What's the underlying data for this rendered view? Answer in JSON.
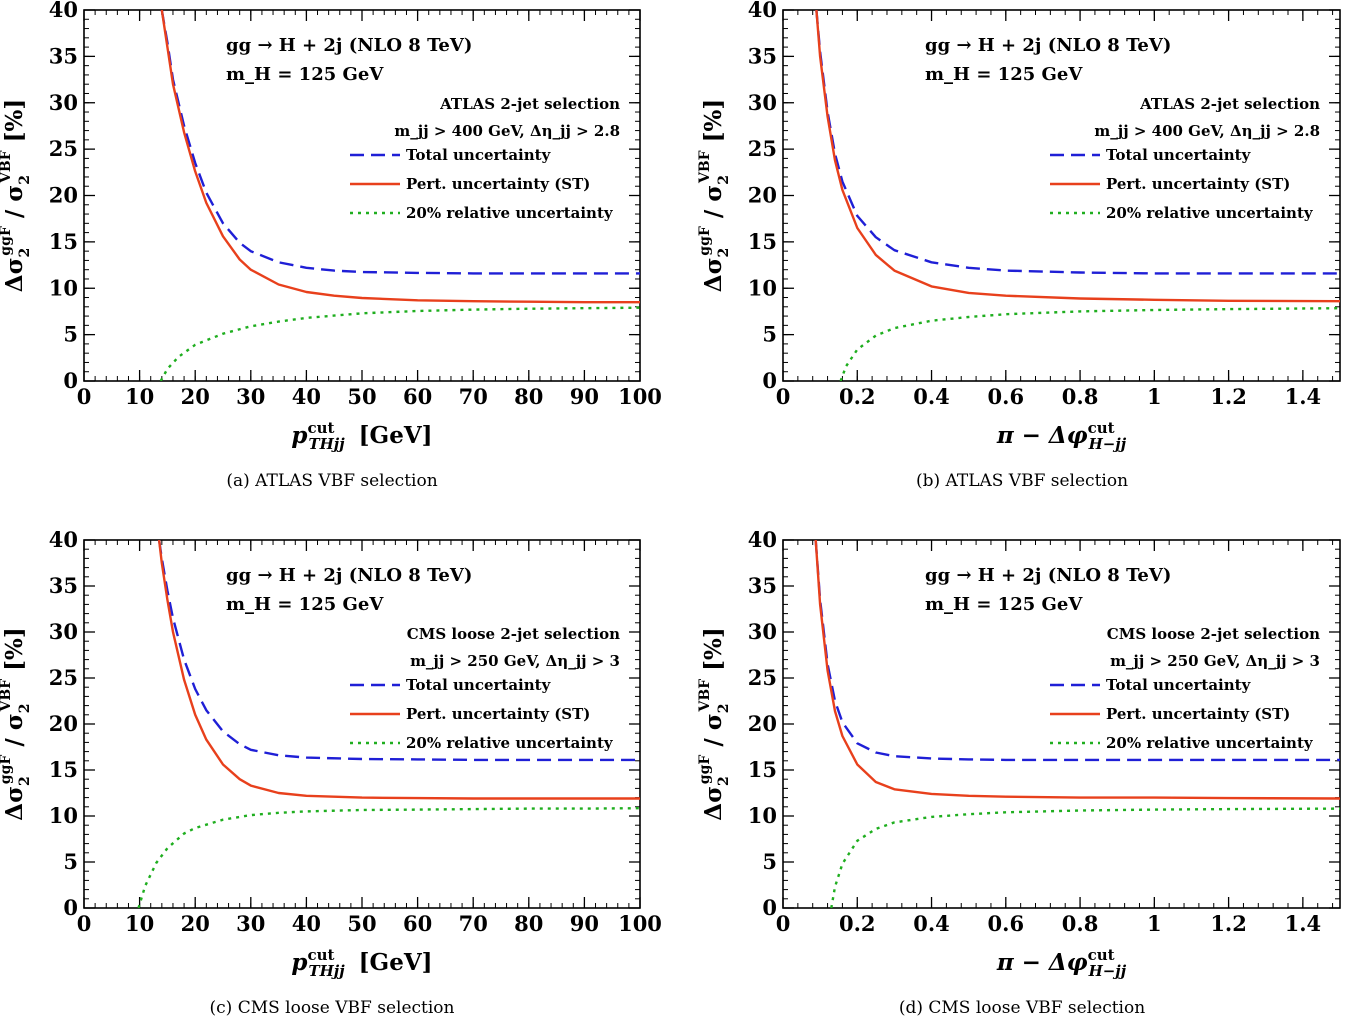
{
  "chart_data": [
    {
      "type": "line",
      "caption": "(a)  ATLAS VBF selection",
      "xlabel": "p_THjj^cut [GeV]",
      "xlabel_parts": {
        "main": "p",
        "sup": "cut",
        "sub": "THjj",
        "unit": "[GeV]"
      },
      "ylabel": "Δσ2^ggF / σ2^VBF [%]",
      "xlim": [
        0,
        100
      ],
      "ylim": [
        0,
        40
      ],
      "xticks": [
        0,
        10,
        20,
        30,
        40,
        50,
        60,
        70,
        80,
        90,
        100
      ],
      "xtick_labels": [
        "0",
        "10",
        "20",
        "30",
        "40",
        "50",
        "60",
        "70",
        "80",
        "90",
        "100"
      ],
      "yticks": [
        0,
        5,
        10,
        15,
        20,
        25,
        30,
        35,
        40
      ],
      "ytick_labels": [
        "0",
        "5",
        "10",
        "15",
        "20",
        "25",
        "30",
        "35",
        "40"
      ],
      "process": "gg → H + 2j  (NLO 8 TeV)",
      "mass": "m_H = 125 GeV",
      "selection": "ATLAS 2-jet selection",
      "cuts": "m_jj > 400 GeV, Δη_jj > 2.8",
      "series": [
        {
          "name": "Total uncertainty",
          "color": "#1f1fd6",
          "style": "dashed",
          "x": [
            14,
            15,
            16,
            18,
            20,
            22,
            25,
            28,
            30,
            35,
            40,
            45,
            50,
            60,
            70,
            80,
            90,
            100
          ],
          "y": [
            40,
            36.5,
            32.5,
            27.5,
            23.5,
            20.3,
            17.0,
            14.9,
            14.0,
            12.8,
            12.2,
            11.9,
            11.75,
            11.65,
            11.6,
            11.6,
            11.6,
            11.6
          ]
        },
        {
          "name": "Pert. uncertainty (ST)",
          "color": "#e8401c",
          "style": "solid",
          "x": [
            14,
            15,
            16,
            18,
            20,
            22,
            25,
            28,
            30,
            35,
            40,
            45,
            50,
            60,
            70,
            80,
            90,
            100
          ],
          "y": [
            40,
            36.0,
            32.0,
            26.8,
            22.6,
            19.2,
            15.6,
            13.1,
            12.0,
            10.4,
            9.6,
            9.2,
            8.95,
            8.7,
            8.6,
            8.55,
            8.5,
            8.5
          ]
        },
        {
          "name": "20% relative uncertainty",
          "color": "#1fae1f",
          "style": "dotted",
          "x": [
            13.8,
            15,
            17,
            20,
            25,
            30,
            35,
            40,
            50,
            60,
            70,
            80,
            90,
            100
          ],
          "y": [
            0,
            1.3,
            2.6,
            3.9,
            5.1,
            5.9,
            6.4,
            6.8,
            7.3,
            7.55,
            7.7,
            7.8,
            7.85,
            7.9
          ]
        }
      ]
    },
    {
      "type": "line",
      "caption": "(b)  ATLAS VBF selection",
      "xlabel": "π − Δφ_H−jj^cut",
      "xlabel_parts": {
        "main": "π − Δφ",
        "sup": "cut",
        "sub": "H−jj",
        "unit": ""
      },
      "ylabel": "Δσ2^ggF / σ2^VBF [%]",
      "xlim": [
        0,
        1.5
      ],
      "ylim": [
        0,
        40
      ],
      "xticks": [
        0,
        0.2,
        0.4,
        0.6,
        0.8,
        1.0,
        1.2,
        1.4
      ],
      "xtick_labels": [
        "0",
        "0.2",
        "0.4",
        "0.6",
        "0.8",
        "1",
        "1.2",
        "1.4"
      ],
      "yticks": [
        0,
        5,
        10,
        15,
        20,
        25,
        30,
        35,
        40
      ],
      "ytick_labels": [
        "0",
        "5",
        "10",
        "15",
        "20",
        "25",
        "30",
        "35",
        "40"
      ],
      "process": "gg → H + 2j  (NLO 8 TeV)",
      "mass": "m_H = 125 GeV",
      "selection": "ATLAS 2-jet selection",
      "cuts": "m_jj > 400 GeV, Δη_jj > 2.8",
      "series": [
        {
          "name": "Total uncertainty",
          "color": "#1f1fd6",
          "style": "dashed",
          "x": [
            0.09,
            0.1,
            0.12,
            0.14,
            0.16,
            0.2,
            0.25,
            0.3,
            0.4,
            0.5,
            0.6,
            0.8,
            1.0,
            1.2,
            1.5
          ],
          "y": [
            40,
            35.5,
            29.0,
            24.5,
            21.5,
            17.8,
            15.5,
            14.1,
            12.8,
            12.2,
            11.9,
            11.7,
            11.6,
            11.6,
            11.6
          ]
        },
        {
          "name": "Pert. uncertainty (ST)",
          "color": "#e8401c",
          "style": "solid",
          "x": [
            0.09,
            0.1,
            0.12,
            0.14,
            0.16,
            0.2,
            0.25,
            0.3,
            0.4,
            0.5,
            0.6,
            0.8,
            1.0,
            1.2,
            1.5
          ],
          "y": [
            40,
            35.0,
            28.5,
            23.8,
            20.6,
            16.5,
            13.6,
            11.9,
            10.2,
            9.5,
            9.2,
            8.9,
            8.75,
            8.65,
            8.6
          ]
        },
        {
          "name": "20% relative uncertainty",
          "color": "#1fae1f",
          "style": "dotted",
          "x": [
            0.155,
            0.17,
            0.2,
            0.25,
            0.3,
            0.4,
            0.5,
            0.6,
            0.8,
            1.0,
            1.2,
            1.5
          ],
          "y": [
            0,
            1.6,
            3.4,
            4.9,
            5.7,
            6.5,
            6.9,
            7.2,
            7.5,
            7.65,
            7.75,
            7.85
          ]
        }
      ]
    },
    {
      "type": "line",
      "caption": "(c)  CMS loose VBF selection",
      "xlabel": "p_THjj^cut [GeV]",
      "xlabel_parts": {
        "main": "p",
        "sup": "cut",
        "sub": "THjj",
        "unit": "[GeV]"
      },
      "ylabel": "Δσ2^ggF / σ2^VBF [%]",
      "xlim": [
        0,
        100
      ],
      "ylim": [
        0,
        40
      ],
      "xticks": [
        0,
        10,
        20,
        30,
        40,
        50,
        60,
        70,
        80,
        90,
        100
      ],
      "xtick_labels": [
        "0",
        "10",
        "20",
        "30",
        "40",
        "50",
        "60",
        "70",
        "80",
        "90",
        "100"
      ],
      "yticks": [
        0,
        5,
        10,
        15,
        20,
        25,
        30,
        35,
        40
      ],
      "ytick_labels": [
        "0",
        "5",
        "10",
        "15",
        "20",
        "25",
        "30",
        "35",
        "40"
      ],
      "process": "gg → H + 2j  (NLO 8 TeV)",
      "mass": "m_H = 125 GeV",
      "selection": "CMS loose 2-jet selection",
      "cuts": "m_jj > 250 GeV, Δη_jj > 3",
      "series": [
        {
          "name": "Total uncertainty",
          "color": "#1f1fd6",
          "style": "dashed",
          "x": [
            13.5,
            14,
            15,
            16,
            18,
            20,
            22,
            25,
            28,
            30,
            35,
            40,
            50,
            60,
            70,
            80,
            90,
            100
          ],
          "y": [
            40,
            38.0,
            34.5,
            31.5,
            27.0,
            23.8,
            21.5,
            19.2,
            17.8,
            17.2,
            16.6,
            16.35,
            16.2,
            16.15,
            16.1,
            16.1,
            16.1,
            16.1
          ]
        },
        {
          "name": "Pert. uncertainty (ST)",
          "color": "#e8401c",
          "style": "solid",
          "x": [
            13.5,
            14,
            15,
            16,
            18,
            20,
            22,
            25,
            28,
            30,
            35,
            40,
            50,
            60,
            70,
            80,
            90,
            100
          ],
          "y": [
            40,
            37.5,
            33.5,
            30.0,
            24.8,
            21.0,
            18.3,
            15.6,
            14.0,
            13.3,
            12.5,
            12.2,
            12.0,
            11.95,
            11.9,
            11.9,
            11.9,
            11.9
          ]
        },
        {
          "name": "20% relative uncertainty",
          "color": "#1fae1f",
          "style": "dotted",
          "x": [
            9.8,
            11,
            13,
            15,
            18,
            20,
            25,
            30,
            35,
            40,
            50,
            60,
            70,
            80,
            90,
            100
          ],
          "y": [
            0,
            2.4,
            4.9,
            6.5,
            8.1,
            8.7,
            9.6,
            10.1,
            10.35,
            10.5,
            10.65,
            10.7,
            10.75,
            10.8,
            10.8,
            10.85
          ]
        }
      ]
    },
    {
      "type": "line",
      "caption": "(d)  CMS loose VBF selection",
      "xlabel": "π − Δφ_H−jj^cut",
      "xlabel_parts": {
        "main": "π − Δφ",
        "sup": "cut",
        "sub": "H−jj",
        "unit": ""
      },
      "ylabel": "Δσ2^ggF / σ2^VBF [%]",
      "xlim": [
        0,
        1.5
      ],
      "ylim": [
        0,
        40
      ],
      "xticks": [
        0,
        0.2,
        0.4,
        0.6,
        0.8,
        1.0,
        1.2,
        1.4
      ],
      "xtick_labels": [
        "0",
        "0.2",
        "0.4",
        "0.6",
        "0.8",
        "1",
        "1.2",
        "1.4"
      ],
      "yticks": [
        0,
        5,
        10,
        15,
        20,
        25,
        30,
        35,
        40
      ],
      "ytick_labels": [
        "0",
        "5",
        "10",
        "15",
        "20",
        "25",
        "30",
        "35",
        "40"
      ],
      "process": "gg → H + 2j  (NLO 8 TeV)",
      "mass": "m_H = 125 GeV",
      "selection": "CMS loose 2-jet selection",
      "cuts": "m_jj > 250 GeV, Δη_jj > 3",
      "series": [
        {
          "name": "Total uncertainty",
          "color": "#1f1fd6",
          "style": "dashed",
          "x": [
            0.088,
            0.1,
            0.12,
            0.14,
            0.16,
            0.2,
            0.25,
            0.3,
            0.4,
            0.5,
            0.6,
            0.8,
            1.0,
            1.2,
            1.5
          ],
          "y": [
            40,
            33.5,
            26.5,
            22.5,
            20.2,
            17.9,
            16.9,
            16.5,
            16.25,
            16.15,
            16.1,
            16.1,
            16.1,
            16.1,
            16.1
          ]
        },
        {
          "name": "Pert. uncertainty (ST)",
          "color": "#e8401c",
          "style": "solid",
          "x": [
            0.088,
            0.1,
            0.12,
            0.14,
            0.16,
            0.2,
            0.25,
            0.3,
            0.4,
            0.5,
            0.6,
            0.8,
            1.0,
            1.2,
            1.5
          ],
          "y": [
            40,
            33.0,
            25.8,
            21.4,
            18.7,
            15.6,
            13.7,
            12.9,
            12.4,
            12.2,
            12.1,
            12.0,
            12.0,
            11.95,
            11.9
          ]
        },
        {
          "name": "20% relative uncertainty",
          "color": "#1fae1f",
          "style": "dotted",
          "x": [
            0.13,
            0.14,
            0.16,
            0.2,
            0.25,
            0.3,
            0.4,
            0.5,
            0.6,
            0.8,
            1.0,
            1.2,
            1.5
          ],
          "y": [
            0,
            2.3,
            4.8,
            7.3,
            8.6,
            9.3,
            9.9,
            10.2,
            10.4,
            10.6,
            10.7,
            10.75,
            10.8
          ]
        }
      ]
    }
  ]
}
